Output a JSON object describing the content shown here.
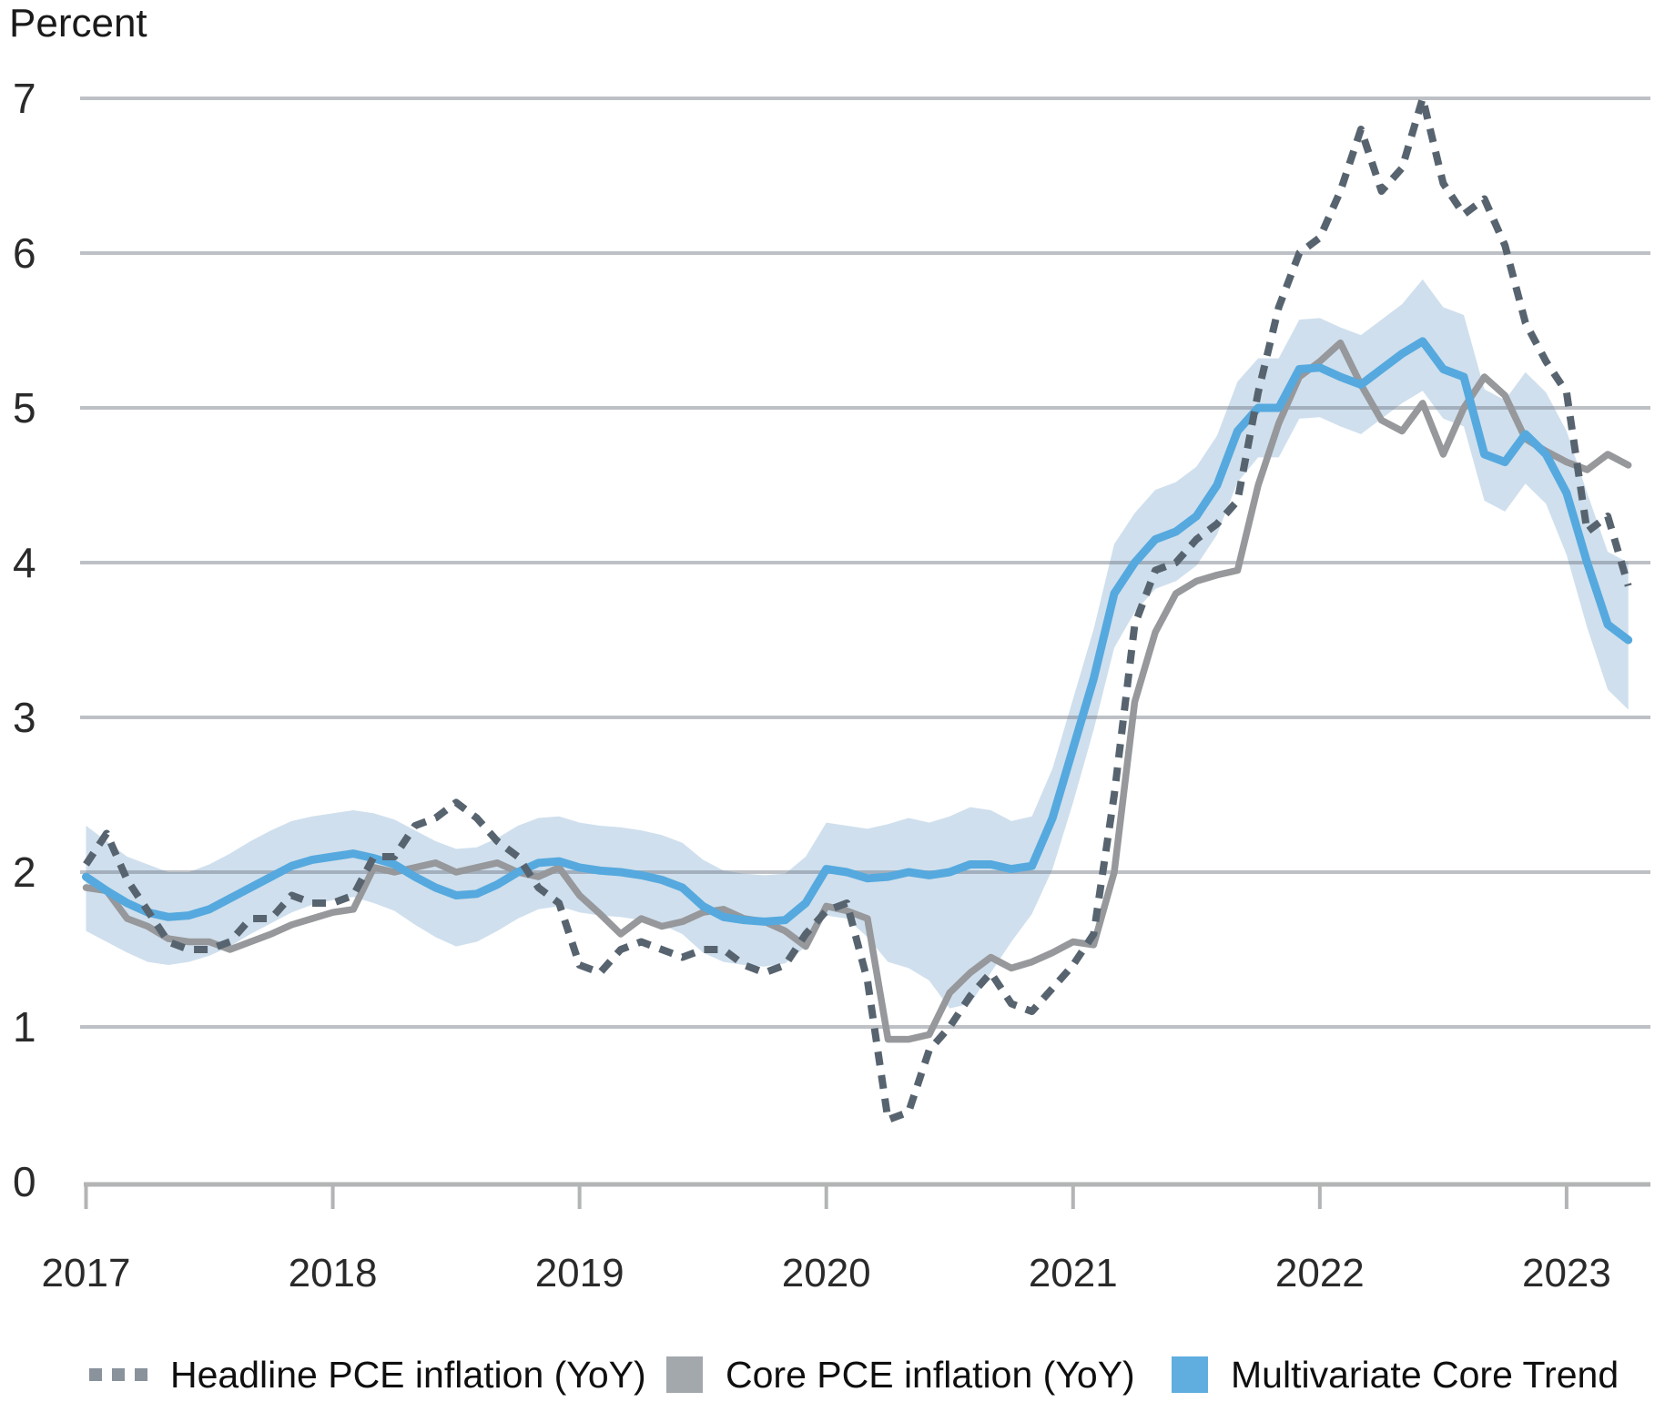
{
  "y_axis_title": "Percent",
  "colors": {
    "background": "#ffffff",
    "gridline": "#c6c8ca",
    "axis": "#b2b4b6",
    "tick_text": "#2a2a2a",
    "headline_line": "#57646f",
    "core_line": "#96989b",
    "mct_line": "#55a9de",
    "band_fill": "#cfdfed",
    "legend_dash_marker": "#8a929c",
    "legend_core_marker": "#a3a8ad",
    "legend_mct_marker": "#60aee0"
  },
  "legend": {
    "items": [
      {
        "marker": "dashes",
        "color": "#8a929c"
      },
      {
        "marker": "square",
        "color": "#a3a8ad"
      },
      {
        "marker": "square",
        "color": "#60aee0"
      }
    ]
  },
  "chart_data": {
    "type": "line",
    "title": "",
    "ylabel": "Percent",
    "xlabel": "",
    "ylim": [
      0,
      7
    ],
    "yticks": [
      0,
      1,
      2,
      3,
      4,
      5,
      6,
      7
    ],
    "x_tick_labels": [
      "2017",
      "2018",
      "2019",
      "2020",
      "2021",
      "2022",
      "2023"
    ],
    "x_start": "2017-01",
    "x_end": "2023-04",
    "frequency": "monthly",
    "grid": "horizontal",
    "legend_position": "bottom",
    "series": [
      {
        "name": "Headline PCE inflation (YoY)",
        "style": "dashed",
        "color": "#57646f",
        "values": [
          2.05,
          2.25,
          1.95,
          1.75,
          1.55,
          1.5,
          1.5,
          1.55,
          1.7,
          1.7,
          1.85,
          1.8,
          1.8,
          1.85,
          2.1,
          2.1,
          2.3,
          2.35,
          2.45,
          2.35,
          2.2,
          2.1,
          1.9,
          1.8,
          1.4,
          1.35,
          1.5,
          1.55,
          1.5,
          1.45,
          1.5,
          1.5,
          1.4,
          1.35,
          1.4,
          1.6,
          1.75,
          1.8,
          1.3,
          0.4,
          0.45,
          0.85,
          1.0,
          1.2,
          1.35,
          1.15,
          1.1,
          1.25,
          1.4,
          1.6,
          2.5,
          3.6,
          3.95,
          4.0,
          4.15,
          4.25,
          4.4,
          5.1,
          5.65,
          6.0,
          6.1,
          6.4,
          6.8,
          6.4,
          6.55,
          7.0,
          6.45,
          6.25,
          6.35,
          6.05,
          5.55,
          5.3,
          5.1,
          4.2,
          4.3,
          3.85
        ]
      },
      {
        "name": "Core PCE inflation (YoY)",
        "style": "solid",
        "color": "#96989b",
        "values": [
          1.9,
          1.88,
          1.7,
          1.65,
          1.57,
          1.55,
          1.55,
          1.5,
          1.55,
          1.6,
          1.66,
          1.7,
          1.74,
          1.76,
          2.03,
          2.0,
          2.03,
          2.06,
          2.0,
          2.03,
          2.06,
          2.0,
          1.97,
          2.03,
          1.85,
          1.73,
          1.6,
          1.7,
          1.65,
          1.68,
          1.74,
          1.76,
          1.7,
          1.68,
          1.62,
          1.52,
          1.78,
          1.75,
          1.7,
          0.92,
          0.92,
          0.95,
          1.22,
          1.35,
          1.45,
          1.38,
          1.42,
          1.48,
          1.55,
          1.53,
          2.0,
          3.1,
          3.55,
          3.8,
          3.88,
          3.92,
          3.95,
          4.5,
          4.9,
          5.2,
          5.3,
          5.42,
          5.15,
          4.92,
          4.85,
          5.03,
          4.7,
          5.0,
          5.2,
          5.08,
          4.8,
          4.72,
          4.65,
          4.6,
          4.7,
          4.63
        ]
      },
      {
        "name": "Multivariate Core Trend",
        "style": "solid",
        "color": "#55a9de",
        "values": [
          1.97,
          1.88,
          1.8,
          1.74,
          1.71,
          1.72,
          1.76,
          1.83,
          1.9,
          1.97,
          2.04,
          2.08,
          2.1,
          2.12,
          2.09,
          2.05,
          1.97,
          1.9,
          1.85,
          1.86,
          1.92,
          2.0,
          2.06,
          2.07,
          2.03,
          2.01,
          2.0,
          1.98,
          1.95,
          1.9,
          1.78,
          1.71,
          1.69,
          1.68,
          1.69,
          1.8,
          2.02,
          2.0,
          1.96,
          1.97,
          2.0,
          1.98,
          2.0,
          2.05,
          2.05,
          2.02,
          2.04,
          2.35,
          2.8,
          3.25,
          3.8,
          4.0,
          4.15,
          4.2,
          4.3,
          4.5,
          4.85,
          5.0,
          5.0,
          5.25,
          5.26,
          5.2,
          5.15,
          5.25,
          5.35,
          5.43,
          5.25,
          5.2,
          4.7,
          4.65,
          4.83,
          4.7,
          4.45,
          4.0,
          3.6,
          3.5
        ],
        "band": {
          "color": "#cfdfed",
          "upper": [
            2.3,
            2.2,
            2.1,
            2.05,
            2.0,
            2.0,
            2.05,
            2.12,
            2.2,
            2.27,
            2.33,
            2.36,
            2.38,
            2.4,
            2.38,
            2.34,
            2.27,
            2.2,
            2.15,
            2.16,
            2.22,
            2.3,
            2.35,
            2.36,
            2.32,
            2.3,
            2.29,
            2.27,
            2.24,
            2.19,
            2.08,
            2.01,
            1.99,
            1.98,
            1.99,
            2.1,
            2.32,
            2.3,
            2.28,
            2.31,
            2.35,
            2.32,
            2.36,
            2.42,
            2.4,
            2.33,
            2.36,
            2.67,
            3.12,
            3.57,
            4.12,
            4.32,
            4.47,
            4.52,
            4.62,
            4.82,
            5.17,
            5.32,
            5.32,
            5.57,
            5.58,
            5.52,
            5.47,
            5.57,
            5.67,
            5.83,
            5.65,
            5.6,
            5.12,
            5.05,
            5.23,
            5.1,
            4.85,
            4.45,
            4.07,
            4.0
          ],
          "lower": [
            1.62,
            1.55,
            1.48,
            1.42,
            1.4,
            1.42,
            1.46,
            1.52,
            1.6,
            1.67,
            1.74,
            1.79,
            1.82,
            1.84,
            1.8,
            1.75,
            1.66,
            1.58,
            1.52,
            1.55,
            1.62,
            1.7,
            1.76,
            1.78,
            1.74,
            1.72,
            1.71,
            1.69,
            1.66,
            1.6,
            1.48,
            1.42,
            1.4,
            1.39,
            1.41,
            1.52,
            1.72,
            1.7,
            1.58,
            1.42,
            1.38,
            1.3,
            1.12,
            1.15,
            1.35,
            1.55,
            1.73,
            2.02,
            2.45,
            2.92,
            3.45,
            3.68,
            3.83,
            3.88,
            3.98,
            4.18,
            4.52,
            4.68,
            4.68,
            4.93,
            4.94,
            4.88,
            4.83,
            4.93,
            5.03,
            5.11,
            4.93,
            4.88,
            4.4,
            4.33,
            4.51,
            4.38,
            4.05,
            3.58,
            3.18,
            3.05
          ]
        }
      }
    ]
  }
}
